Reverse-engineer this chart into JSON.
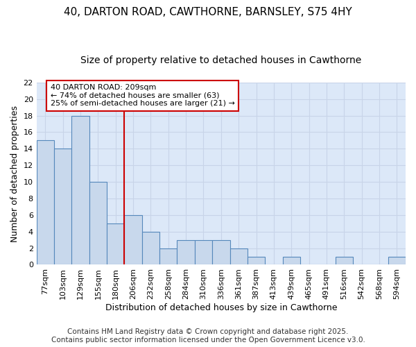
{
  "title_line1": "40, DARTON ROAD, CAWTHORNE, BARNSLEY, S75 4HY",
  "title_line2": "Size of property relative to detached houses in Cawthorne",
  "xlabel": "Distribution of detached houses by size in Cawthorne",
  "ylabel": "Number of detached properties",
  "categories": [
    "77sqm",
    "103sqm",
    "129sqm",
    "155sqm",
    "180sqm",
    "206sqm",
    "232sqm",
    "258sqm",
    "284sqm",
    "310sqm",
    "336sqm",
    "361sqm",
    "387sqm",
    "413sqm",
    "439sqm",
    "465sqm",
    "491sqm",
    "516sqm",
    "542sqm",
    "568sqm",
    "594sqm"
  ],
  "values": [
    15,
    14,
    18,
    10,
    5,
    6,
    4,
    2,
    3,
    3,
    3,
    2,
    1,
    0,
    1,
    0,
    0,
    1,
    0,
    0,
    1
  ],
  "bar_color": "#c8d8ec",
  "bar_edge_color": "#5588bb",
  "highlight_bar_index": 5,
  "highlight_line_color": "#cc0000",
  "annotation_text": "40 DARTON ROAD: 209sqm\n← 74% of detached houses are smaller (63)\n25% of semi-detached houses are larger (21) →",
  "annotation_box_color": "#ffffff",
  "annotation_box_edge": "#cc0000",
  "ylim": [
    0,
    22
  ],
  "yticks": [
    0,
    2,
    4,
    6,
    8,
    10,
    12,
    14,
    16,
    18,
    20,
    22
  ],
  "grid_color": "#c8d4e8",
  "bg_color": "#dce8f8",
  "fig_bg_color": "#ffffff",
  "footer_text": "Contains HM Land Registry data © Crown copyright and database right 2025.\nContains public sector information licensed under the Open Government Licence v3.0.",
  "title_fontsize": 11,
  "subtitle_fontsize": 10,
  "axis_label_fontsize": 9,
  "tick_fontsize": 8,
  "annotation_fontsize": 8,
  "footer_fontsize": 7.5
}
